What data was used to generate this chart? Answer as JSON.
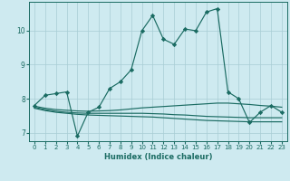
{
  "xlabel": "Humidex (Indice chaleur)",
  "background_color": "#ceeaf0",
  "grid_color": "#a8cdd4",
  "line_color": "#1a6b62",
  "xlim": [
    -0.5,
    23.5
  ],
  "ylim": [
    6.75,
    10.85
  ],
  "yticks": [
    7,
    8,
    9,
    10
  ],
  "xticks": [
    0,
    1,
    2,
    3,
    4,
    5,
    6,
    7,
    8,
    9,
    10,
    11,
    12,
    13,
    14,
    15,
    16,
    17,
    18,
    19,
    20,
    21,
    22,
    23
  ],
  "lines": [
    {
      "x": [
        0,
        1,
        2,
        3,
        4,
        5,
        6,
        7,
        8,
        9,
        10,
        11,
        12,
        13,
        14,
        15,
        16,
        17,
        18,
        19,
        20,
        21,
        22,
        23
      ],
      "y": [
        7.8,
        8.1,
        8.15,
        8.2,
        6.9,
        7.6,
        7.75,
        8.3,
        8.5,
        8.85,
        10.0,
        10.45,
        9.75,
        9.6,
        10.05,
        10.0,
        10.55,
        10.65,
        8.2,
        8.0,
        7.3,
        7.6,
        7.8,
        7.6
      ],
      "marker": "D",
      "markersize": 2.2
    },
    {
      "x": [
        0,
        1,
        2,
        3,
        4,
        5,
        6,
        7,
        8,
        9,
        10,
        11,
        12,
        13,
        14,
        15,
        16,
        17,
        18,
        19,
        20,
        21,
        22,
        23
      ],
      "y": [
        7.78,
        7.72,
        7.68,
        7.66,
        7.64,
        7.63,
        7.64,
        7.65,
        7.67,
        7.7,
        7.73,
        7.75,
        7.77,
        7.79,
        7.81,
        7.83,
        7.85,
        7.87,
        7.87,
        7.85,
        7.83,
        7.8,
        7.78,
        7.75
      ],
      "marker": null,
      "markersize": 0
    },
    {
      "x": [
        0,
        1,
        2,
        3,
        4,
        5,
        6,
        7,
        8,
        9,
        10,
        11,
        12,
        13,
        14,
        15,
        16,
        17,
        18,
        19,
        20,
        21,
        22,
        23
      ],
      "y": [
        7.75,
        7.68,
        7.63,
        7.6,
        7.58,
        7.57,
        7.57,
        7.57,
        7.57,
        7.57,
        7.57,
        7.56,
        7.55,
        7.53,
        7.52,
        7.5,
        7.48,
        7.47,
        7.46,
        7.45,
        7.44,
        7.44,
        7.44,
        7.44
      ],
      "marker": null,
      "markersize": 0
    },
    {
      "x": [
        0,
        1,
        2,
        3,
        4,
        5,
        6,
        7,
        8,
        9,
        10,
        11,
        12,
        13,
        14,
        15,
        16,
        17,
        18,
        19,
        20,
        21,
        22,
        23
      ],
      "y": [
        7.72,
        7.65,
        7.6,
        7.57,
        7.54,
        7.52,
        7.51,
        7.5,
        7.49,
        7.48,
        7.47,
        7.46,
        7.44,
        7.42,
        7.4,
        7.38,
        7.36,
        7.35,
        7.34,
        7.33,
        7.32,
        7.32,
        7.32,
        7.32
      ],
      "marker": null,
      "markersize": 0
    }
  ]
}
